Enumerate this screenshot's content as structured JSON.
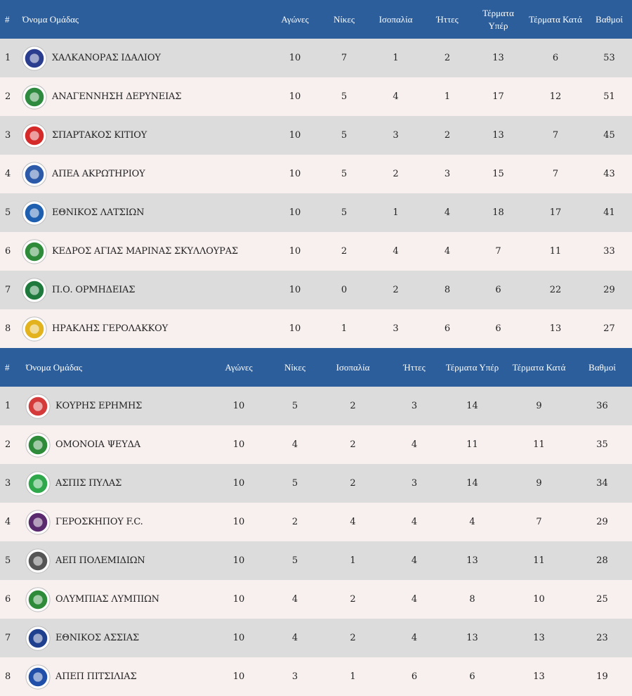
{
  "headers_1": [
    "#",
    "Όνομα Ομάδας",
    "Αγώνες",
    "Νίκες",
    "Ισοπαλία",
    "Ήττες",
    "Τέρματα Υπέρ",
    "Τέρματα Κατά",
    "Βαθμοί"
  ],
  "group_1": [
    {
      "pos": "1",
      "team": "ΧΑΛΚΑΝΟΡΑΣ ΙΔΑΛΙΟΥ",
      "played": "10",
      "wins": "7",
      "draws": "1",
      "losses": "2",
      "gf": "13",
      "ga": "6",
      "pts": "53",
      "icon": "chalkanoras-crest-icon",
      "color": "#2b3d8f"
    },
    {
      "pos": "2",
      "team": "ΑΝΑΓΕΝΝΗΣΗ ΔΕΡΥΝΕΙΑΣ",
      "played": "10",
      "wins": "5",
      "draws": "4",
      "losses": "1",
      "gf": "17",
      "ga": "12",
      "pts": "51",
      "icon": "anagennisi-shield-icon",
      "color": "#2d8a3e"
    },
    {
      "pos": "3",
      "team": "ΣΠΑΡΤΑΚΟΣ ΚΙΤΙΟΥ",
      "played": "10",
      "wins": "5",
      "draws": "3",
      "losses": "2",
      "gf": "13",
      "ga": "7",
      "pts": "45",
      "icon": "spartakos-crest-icon",
      "color": "#d42a2a"
    },
    {
      "pos": "4",
      "team": "ΑΠΕΑ ΑΚΡΩΤΗΡΙΟΥ",
      "played": "10",
      "wins": "5",
      "draws": "2",
      "losses": "3",
      "gf": "15",
      "ga": "7",
      "pts": "43",
      "icon": "apea-flamingo-icon",
      "color": "#2d5aa8"
    },
    {
      "pos": "5",
      "team": "ΕΘΝΙΚΟΣ ΛΑΤΣΙΩΝ",
      "played": "10",
      "wins": "5",
      "draws": "1",
      "losses": "4",
      "gf": "18",
      "ga": "17",
      "pts": "41",
      "icon": "ethnikos-latsion-shield-icon",
      "color": "#1f5fb0"
    },
    {
      "pos": "6",
      "team": "ΚΕΔΡΟΣ ΑΓΙΑΣ ΜΑΡΙΝΑΣ ΣΚΥΛΛΟΥΡΑΣ",
      "played": "10",
      "wins": "2",
      "draws": "4",
      "losses": "4",
      "gf": "7",
      "ga": "11",
      "pts": "33",
      "icon": "kedros-cedar-icon",
      "color": "#2e8b3a"
    },
    {
      "pos": "7",
      "team": "Π.Ο. ΟΡΜΗΔΕΙΑΣ",
      "played": "10",
      "wins": "0",
      "draws": "2",
      "losses": "8",
      "gf": "6",
      "ga": "22",
      "pts": "29",
      "icon": "ormideia-shield-icon",
      "color": "#1e7a3c"
    },
    {
      "pos": "8",
      "team": "ΗΡΑΚΛΗΣ ΓΕΡΟΛΑΚΚΟΥ",
      "played": "10",
      "wins": "1",
      "draws": "3",
      "losses": "6",
      "gf": "6",
      "ga": "13",
      "pts": "27",
      "icon": "iraklis-crest-icon",
      "color": "#e3b21f"
    }
  ],
  "headers_2": [
    "#",
    "Όνομα Ομάδας",
    "Αγώνες",
    "Νίκες",
    "Ισοπαλία",
    "Ήττες",
    "Τέρματα Υπέρ",
    "Τέρματα Κατά",
    "Βαθμοί"
  ],
  "group_2": [
    {
      "pos": "1",
      "team": "ΚΟΥΡΗΣ ΕΡΗΜΗΣ",
      "played": "10",
      "wins": "5",
      "draws": "2",
      "losses": "3",
      "gf": "14",
      "ga": "9",
      "pts": "36",
      "icon": "kouris-crest-icon",
      "color": "#d43a3a"
    },
    {
      "pos": "2",
      "team": "ΟΜΟΝΟΙΑ ΨΕΥΔΑ",
      "played": "10",
      "wins": "4",
      "draws": "2",
      "losses": "4",
      "gf": "11",
      "ga": "11",
      "pts": "35",
      "icon": "omonoia-clover-icon",
      "color": "#2e8b3a"
    },
    {
      "pos": "3",
      "team": "ΑΣΠΙΣ ΠΥΛΑΣ",
      "played": "10",
      "wins": "5",
      "draws": "2",
      "losses": "3",
      "gf": "14",
      "ga": "9",
      "pts": "34",
      "icon": "aspis-shield-icon",
      "color": "#2ea84a"
    },
    {
      "pos": "4",
      "team": "ΓΕΡΟΣΚΗΠΟΥ F.C.",
      "played": "10",
      "wins": "2",
      "draws": "4",
      "losses": "4",
      "gf": "4",
      "ga": "7",
      "pts": "29",
      "icon": "geroskipou-crest-icon",
      "color": "#5a2a6e"
    },
    {
      "pos": "5",
      "team": "ΑΕΠ ΠΟΛΕΜΙΔΙΩΝ",
      "played": "10",
      "wins": "5",
      "draws": "1",
      "losses": "4",
      "gf": "13",
      "ga": "11",
      "pts": "28",
      "icon": "aep-polemidion-icon",
      "color": "#555555"
    },
    {
      "pos": "6",
      "team": "ΟΛΥΜΠΙΑΣ ΛΥΜΠΙΩΝ",
      "played": "10",
      "wins": "4",
      "draws": "2",
      "losses": "4",
      "gf": "8",
      "ga": "10",
      "pts": "25",
      "icon": "olympias-crest-icon",
      "color": "#2e8b3a"
    },
    {
      "pos": "7",
      "team": "ΕΘΝΙΚΟΣ ΑΣΣΙΑΣ",
      "played": "10",
      "wins": "4",
      "draws": "2",
      "losses": "4",
      "gf": "13",
      "ga": "13",
      "pts": "23",
      "icon": "ethnikos-assias-icon",
      "color": "#1f3f8f"
    },
    {
      "pos": "8",
      "team": "ΑΠΕΠ ΠΙΤΣΙΛΙΑΣ",
      "played": "10",
      "wins": "3",
      "draws": "1",
      "losses": "6",
      "gf": "6",
      "ga": "13",
      "pts": "19",
      "icon": "apep-shield-icon",
      "color": "#1f4fa8"
    }
  ]
}
